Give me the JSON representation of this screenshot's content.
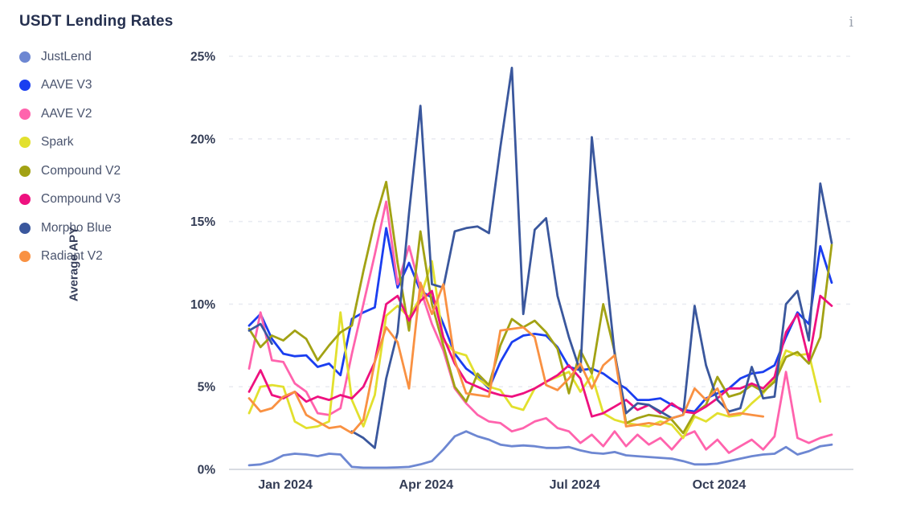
{
  "title": "USDT Lending Rates",
  "info_icon": "i",
  "accent_colors": {
    "title_text": "#25304f",
    "legend_text": "#4a546e",
    "axis_text": "#333c55",
    "grid": "#e9ebf1",
    "axis_line": "#d8dbe2",
    "info_icon": "#9aa1ad"
  },
  "chart_data": {
    "type": "line",
    "title": "USDT Lending Rates",
    "ylabel": "Average APY",
    "xlabel": "",
    "ylim": [
      0,
      25
    ],
    "grid": "horizontal-dashed",
    "legend_position": "left",
    "y_ticks": [
      {
        "value": 25,
        "label": "25%"
      },
      {
        "value": 20,
        "label": "20%"
      },
      {
        "value": 15,
        "label": "15%"
      },
      {
        "value": 10,
        "label": "10%"
      },
      {
        "value": 5,
        "label": "5%"
      },
      {
        "value": 0,
        "label": "0%"
      }
    ],
    "x_unit": "week-index (weekly data, Dec 2023 - Dec 2024)",
    "x_range": [
      0,
      51
    ],
    "x_ticks": [
      {
        "label": "Jan 2024",
        "week": 3.17
      },
      {
        "label": "Apr 2024",
        "week": 15.5
      },
      {
        "label": "Jul 2024",
        "week": 28.5
      },
      {
        "label": "Oct 2024",
        "week": 41.15
      }
    ],
    "series": [
      {
        "name": "JustLend",
        "color": "#6d87d2",
        "values": [
          0.25,
          0.3,
          0.5,
          0.85,
          0.95,
          0.9,
          0.8,
          0.95,
          0.9,
          0.15,
          0.1,
          0.1,
          0.1,
          0.12,
          0.15,
          0.3,
          0.5,
          1.2,
          2.0,
          2.3,
          2.0,
          1.8,
          1.5,
          1.4,
          1.45,
          1.4,
          1.3,
          1.3,
          1.35,
          1.15,
          1.0,
          0.95,
          1.05,
          0.85,
          0.8,
          0.75,
          0.7,
          0.65,
          0.5,
          0.3,
          0.3,
          0.35,
          0.5,
          0.65,
          0.8,
          0.9,
          0.95,
          1.35,
          0.9,
          1.1,
          1.4,
          1.5
        ]
      },
      {
        "name": "AAVE V3",
        "color": "#1a3ef0",
        "values": [
          8.7,
          9.4,
          7.9,
          7.0,
          6.85,
          6.9,
          6.2,
          6.4,
          5.7,
          9.1,
          9.5,
          9.8,
          14.6,
          11.0,
          12.5,
          10.8,
          10.4,
          8.8,
          7.0,
          6.1,
          5.6,
          4.9,
          6.5,
          7.7,
          8.1,
          8.2,
          8.1,
          7.4,
          6.2,
          6.0,
          6.1,
          5.8,
          5.3,
          4.9,
          4.2,
          4.2,
          4.3,
          3.9,
          3.6,
          3.5,
          4.3,
          4.6,
          4.9,
          5.5,
          5.8,
          5.9,
          6.3,
          8.0,
          9.5,
          8.8,
          13.5,
          11.3
        ]
      },
      {
        "name": "AAVE V2",
        "color": "#ff63ad",
        "values": [
          6.1,
          9.5,
          6.6,
          6.5,
          5.2,
          4.7,
          3.4,
          3.3,
          3.7,
          7.0,
          10.0,
          13.0,
          16.2,
          11.2,
          13.5,
          10.9,
          8.8,
          7.2,
          4.9,
          4.0,
          3.3,
          2.9,
          2.8,
          2.3,
          2.5,
          2.9,
          3.1,
          2.5,
          2.3,
          1.6,
          2.1,
          1.4,
          2.3,
          1.4,
          2.1,
          1.5,
          1.9,
          1.2,
          2.0,
          2.3,
          1.2,
          1.8,
          1.0,
          1.4,
          1.8,
          1.2,
          2.0,
          5.9,
          1.9,
          1.6,
          1.9,
          2.1
        ]
      },
      {
        "name": "Spark",
        "color": "#e2e02e",
        "values": [
          3.4,
          5.0,
          5.1,
          5.0,
          2.9,
          2.5,
          2.6,
          2.9,
          9.5,
          4.2,
          2.6,
          4.5,
          9.3,
          9.9,
          9.2,
          10.4,
          12.6,
          7.8,
          7.1,
          6.9,
          5.5,
          5.0,
          4.8,
          3.8,
          3.6,
          4.9,
          5.3,
          5.6,
          5.9,
          4.7,
          5.7,
          3.4,
          3.0,
          2.8,
          2.7,
          2.6,
          2.9,
          2.7,
          1.9,
          3.2,
          2.9,
          3.4,
          3.2,
          3.3,
          4.0,
          4.6,
          5.5,
          7.2,
          6.9,
          7.0,
          4.1,
          null
        ]
      },
      {
        "name": "Compound V2",
        "color": "#a2a214",
        "values": [
          8.5,
          7.4,
          8.1,
          7.8,
          8.4,
          7.9,
          6.6,
          7.5,
          8.3,
          8.7,
          12.0,
          15.0,
          17.4,
          12.5,
          8.4,
          14.4,
          10.0,
          7.5,
          5.0,
          4.1,
          5.8,
          5.1,
          7.5,
          9.1,
          8.6,
          9.0,
          8.3,
          7.3,
          4.6,
          7.2,
          5.8,
          10.0,
          7.1,
          2.8,
          3.1,
          3.3,
          3.2,
          3.0,
          2.2,
          3.4,
          3.9,
          5.6,
          4.4,
          4.6,
          5.1,
          4.7,
          5.3,
          6.8,
          7.1,
          6.4,
          8.0,
          13.6
        ]
      },
      {
        "name": "Compound V3",
        "color": "#ee117f",
        "values": [
          4.7,
          6.0,
          4.5,
          4.3,
          4.7,
          4.1,
          4.4,
          4.2,
          4.5,
          4.3,
          5.0,
          6.5,
          10.0,
          10.5,
          9.0,
          10.2,
          10.8,
          8.0,
          6.4,
          5.3,
          5.0,
          4.7,
          4.5,
          4.4,
          4.6,
          4.9,
          5.3,
          5.7,
          6.3,
          5.5,
          3.2,
          3.4,
          3.8,
          4.2,
          3.6,
          3.9,
          3.4,
          4.0,
          3.5,
          3.4,
          3.8,
          4.3,
          4.9,
          4.9,
          5.2,
          4.9,
          5.6,
          8.3,
          9.4,
          6.6,
          10.5,
          9.9
        ]
      },
      {
        "name": "Morpho Blue",
        "color": "#3a579d",
        "values": [
          8.4,
          8.8,
          7.6,
          null,
          null,
          null,
          null,
          null,
          null,
          2.3,
          1.9,
          1.3,
          5.5,
          8.3,
          15.5,
          22.0,
          11.2,
          11.0,
          14.4,
          14.6,
          14.7,
          14.3,
          19.5,
          24.3,
          9.4,
          14.5,
          15.2,
          10.5,
          8.0,
          5.9,
          20.1,
          13.5,
          7.0,
          3.4,
          4.0,
          3.9,
          3.5,
          3.1,
          3.3,
          9.9,
          6.3,
          4.2,
          3.5,
          3.7,
          6.2,
          4.3,
          4.4,
          10.0,
          10.8,
          7.8,
          17.3,
          13.7
        ]
      },
      {
        "name": "Radiant V2",
        "color": "#f99142",
        "values": [
          4.3,
          3.5,
          3.7,
          4.4,
          4.7,
          3.3,
          2.9,
          2.5,
          2.6,
          2.2,
          3.0,
          6.5,
          8.6,
          7.7,
          4.9,
          11.3,
          9.4,
          11.2,
          6.6,
          4.6,
          4.5,
          4.4,
          8.4,
          8.5,
          8.6,
          8.0,
          5.1,
          4.8,
          5.5,
          6.4,
          4.9,
          6.3,
          6.9,
          2.6,
          2.7,
          2.8,
          2.7,
          3.1,
          3.3,
          4.9,
          4.2,
          4.9,
          3.3,
          3.4,
          3.3,
          3.2,
          null,
          null,
          null,
          null,
          null,
          null
        ]
      }
    ]
  }
}
